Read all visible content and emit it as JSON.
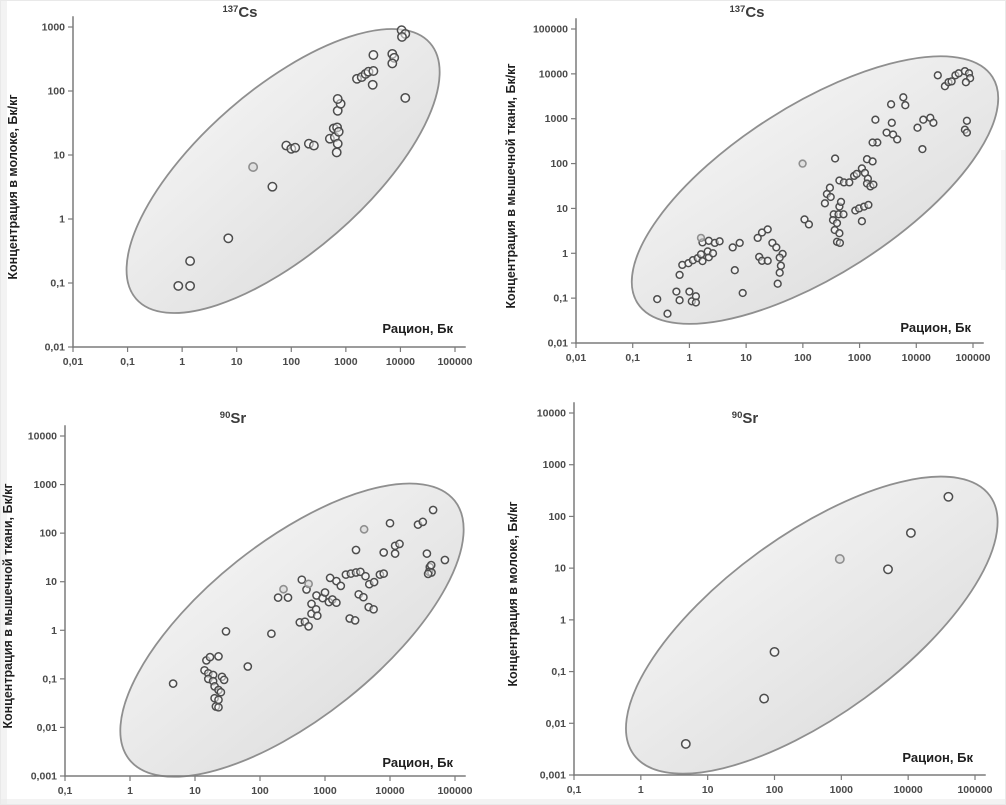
{
  "page": {
    "background": "#ffffff"
  },
  "colors": {
    "ellipse_fill_top": "#f0f0f0",
    "ellipse_fill_bottom": "#e2e2e2",
    "ellipse_stroke": "#8f8f8f",
    "point_stroke": "#4d4d4d",
    "axis": "#7b7b7b",
    "text": "#1f1f1f"
  },
  "chart_data": [
    {
      "type": "scatter",
      "id": "cs137-milk",
      "title": "137Cs",
      "title_sup": "137",
      "title_main": "Cs",
      "xlabel": "Рацион, Бк",
      "ylabel": "Концентрация в молоке, Бк/кг",
      "x_scale": "log",
      "y_scale": "log",
      "x_log_range": [
        -2,
        5
      ],
      "y_log_range": [
        -2,
        3
      ],
      "x_ticks": [
        "0,01",
        "0,1",
        "1",
        "10",
        "100",
        "1000",
        "10000",
        "100000"
      ],
      "y_ticks": [
        "0,01",
        "0,1",
        "1",
        "10",
        "100",
        "1000"
      ],
      "grid": false,
      "legend": false,
      "ellipse": {
        "cx": 0.55,
        "cy": 0.45,
        "rx": 0.51,
        "ry": 0.256,
        "angle": -41
      },
      "points": [
        [
          0.85,
          0.09
        ],
        [
          1.4,
          0.09
        ],
        [
          1.4,
          0.22
        ],
        [
          7,
          0.5
        ],
        [
          45,
          3.2
        ],
        [
          81,
          14
        ],
        [
          100,
          12.5
        ],
        [
          118,
          13
        ],
        [
          210,
          15
        ],
        [
          260,
          14
        ],
        [
          510,
          18
        ],
        [
          630,
          19
        ],
        [
          680,
          11
        ],
        [
          600,
          26
        ],
        [
          690,
          27
        ],
        [
          710,
          15
        ],
        [
          740,
          23
        ],
        [
          710,
          49
        ],
        [
          800,
          63
        ],
        [
          710,
          75
        ],
        [
          1600,
          155
        ],
        [
          1950,
          165
        ],
        [
          2300,
          185
        ],
        [
          2600,
          200
        ],
        [
          3200,
          205
        ],
        [
          3100,
          125
        ],
        [
          3200,
          365
        ],
        [
          7100,
          380
        ],
        [
          7700,
          330
        ],
        [
          7100,
          270
        ],
        [
          10500,
          890
        ],
        [
          12300,
          780
        ],
        [
          10700,
          700
        ],
        [
          12300,
          78
        ]
      ],
      "gray_points": [
        [
          20,
          6.5
        ]
      ]
    },
    {
      "type": "scatter",
      "id": "cs137-muscle",
      "title": "137Cs",
      "title_sup": "137",
      "title_main": "Cs",
      "xlabel": "Рацион, Бк",
      "ylabel": "Концентрация в мышечной ткани, Бк/кг",
      "x_scale": "log",
      "y_scale": "log",
      "x_log_range": [
        -2,
        5
      ],
      "y_log_range": [
        -2,
        5
      ],
      "x_ticks": [
        "0,01",
        "0,1",
        "1",
        "10",
        "100",
        "1000",
        "10000",
        "100000"
      ],
      "y_ticks": [
        "0,01",
        "0,1",
        "1",
        "10",
        "100",
        "1000",
        "10000",
        "100000"
      ],
      "grid": false,
      "legend": false,
      "ellipse": {
        "cx": 0.602,
        "cy": 0.513,
        "rx": 0.53,
        "ry": 0.27,
        "angle": -32.5
      },
      "points": [
        [
          0.27,
          0.095
        ],
        [
          0.41,
          0.045
        ],
        [
          0.59,
          0.14
        ],
        [
          0.67,
          0.09
        ],
        [
          1.1,
          0.085
        ],
        [
          1.3,
          0.11
        ],
        [
          0.75,
          0.55
        ],
        [
          0.67,
          0.33
        ],
        [
          0.96,
          0.6
        ],
        [
          1.15,
          0.7
        ],
        [
          1.4,
          0.78
        ],
        [
          1.7,
          0.67
        ],
        [
          2.2,
          0.82
        ],
        [
          1.6,
          0.95
        ],
        [
          2.1,
          1.1
        ],
        [
          2.6,
          1.0
        ],
        [
          1.7,
          1.75
        ],
        [
          2.2,
          1.9
        ],
        [
          2.8,
          1.7
        ],
        [
          3.4,
          1.85
        ],
        [
          5.8,
          1.35
        ],
        [
          7.7,
          1.7
        ],
        [
          6.3,
          0.42
        ],
        [
          8.7,
          0.13
        ],
        [
          1.0,
          0.14
        ],
        [
          1.3,
          0.08
        ],
        [
          16,
          2.2
        ],
        [
          19,
          2.9
        ],
        [
          24,
          3.4
        ],
        [
          29,
          1.7
        ],
        [
          34,
          1.35
        ],
        [
          17,
          0.83
        ],
        [
          19,
          0.68
        ],
        [
          24,
          0.68
        ],
        [
          44,
          0.97
        ],
        [
          39,
          0.8
        ],
        [
          41,
          0.53
        ],
        [
          39,
          0.37
        ],
        [
          36,
          0.21
        ],
        [
          107,
          5.7
        ],
        [
          128,
          4.4
        ],
        [
          245,
          13
        ],
        [
          265,
          21
        ],
        [
          300,
          29
        ],
        [
          310,
          18
        ],
        [
          350,
          7.4
        ],
        [
          425,
          7.4
        ],
        [
          520,
          7.4
        ],
        [
          340,
          5.5
        ],
        [
          400,
          4.7
        ],
        [
          365,
          3.3
        ],
        [
          440,
          2.8
        ],
        [
          400,
          1.8
        ],
        [
          450,
          1.7
        ],
        [
          440,
          11
        ],
        [
          470,
          14
        ],
        [
          840,
          9
        ],
        [
          980,
          10
        ],
        [
          1200,
          11
        ],
        [
          1430,
          12
        ],
        [
          1100,
          5.2
        ],
        [
          440,
          42
        ],
        [
          530,
          38
        ],
        [
          660,
          38
        ],
        [
          800,
          53
        ],
        [
          890,
          59
        ],
        [
          1100,
          78
        ],
        [
          1240,
          62
        ],
        [
          1400,
          46
        ],
        [
          1350,
          36
        ],
        [
          1550,
          31
        ],
        [
          1750,
          34
        ],
        [
          370,
          130
        ],
        [
          1350,
          125
        ],
        [
          1700,
          112
        ],
        [
          1900,
          950
        ],
        [
          3700,
          810
        ],
        [
          3000,
          490
        ],
        [
          3900,
          445
        ],
        [
          4600,
          345
        ],
        [
          2050,
          295
        ],
        [
          1700,
          295
        ],
        [
          3600,
          2100
        ],
        [
          5900,
          3000
        ],
        [
          6400,
          2000
        ],
        [
          10500,
          630
        ],
        [
          13300,
          950
        ],
        [
          17700,
          1050
        ],
        [
          20000,
          810
        ],
        [
          12800,
          210
        ],
        [
          24000,
          9300
        ],
        [
          32000,
          5300
        ],
        [
          37000,
          6500
        ],
        [
          42000,
          6800
        ],
        [
          49000,
          9300
        ],
        [
          56000,
          10300
        ],
        [
          72000,
          11500
        ],
        [
          85000,
          10300
        ],
        [
          89000,
          8000
        ],
        [
          75000,
          6500
        ],
        [
          78000,
          900
        ],
        [
          72000,
          570
        ],
        [
          78000,
          490
        ]
      ],
      "gray_points": [
        [
          99,
          100
        ],
        [
          1.6,
          2.2
        ]
      ]
    },
    {
      "type": "scatter",
      "id": "sr90-muscle",
      "title": "90Sr",
      "title_sup": "90",
      "title_main": "Sr",
      "xlabel": "Рацион, Бк",
      "ylabel": "Концентрация в мышечной ткани, Бк/кг",
      "x_scale": "log",
      "y_scale": "log",
      "x_log_range": [
        -1,
        5
      ],
      "y_log_range": [
        -3,
        4
      ],
      "x_ticks": [
        "0,1",
        "1",
        "10",
        "100",
        "1000",
        "10000",
        "100000"
      ],
      "y_ticks": [
        "0,001",
        "0,01",
        "0,1",
        "1",
        "10",
        "100",
        "1000",
        "10000"
      ],
      "grid": false,
      "legend": false,
      "ellipse": {
        "cx": 0.582,
        "cy": 0.571,
        "rx": 0.533,
        "ry": 0.259,
        "angle": -38.5
      },
      "points": [
        [
          4.6,
          0.08
        ],
        [
          15,
          0.24
        ],
        [
          17,
          0.28
        ],
        [
          23,
          0.29
        ],
        [
          14,
          0.15
        ],
        [
          16,
          0.13
        ],
        [
          19,
          0.12
        ],
        [
          16,
          0.1
        ],
        [
          19,
          0.09
        ],
        [
          26,
          0.11
        ],
        [
          28,
          0.095
        ],
        [
          20,
          0.07
        ],
        [
          23,
          0.059
        ],
        [
          25,
          0.053
        ],
        [
          20,
          0.04
        ],
        [
          23,
          0.037
        ],
        [
          21,
          0.027
        ],
        [
          23,
          0.026
        ],
        [
          30,
          0.95
        ],
        [
          65,
          0.18
        ],
        [
          150,
          0.85
        ],
        [
          190,
          4.7
        ],
        [
          270,
          4.7
        ],
        [
          410,
          1.45
        ],
        [
          490,
          1.5
        ],
        [
          560,
          1.2
        ],
        [
          620,
          2.2
        ],
        [
          730,
          2.7
        ],
        [
          760,
          2.0
        ],
        [
          520,
          6.9
        ],
        [
          620,
          3.5
        ],
        [
          740,
          5.2
        ],
        [
          920,
          4.6
        ],
        [
          1150,
          3.8
        ],
        [
          1000,
          6
        ],
        [
          1300,
          4.3
        ],
        [
          1500,
          3.7
        ],
        [
          2400,
          1.75
        ],
        [
          2900,
          1.6
        ],
        [
          3300,
          5.5
        ],
        [
          3900,
          4.8
        ],
        [
          4700,
          3.0
        ],
        [
          5600,
          2.7
        ],
        [
          1200,
          12
        ],
        [
          1500,
          10.3
        ],
        [
          1750,
          8.2
        ],
        [
          2100,
          14
        ],
        [
          2500,
          14.7
        ],
        [
          3000,
          15.5
        ],
        [
          3500,
          16
        ],
        [
          4200,
          13
        ],
        [
          4800,
          8.9
        ],
        [
          5700,
          9.8
        ],
        [
          7000,
          14
        ],
        [
          8000,
          14.7
        ],
        [
          440,
          11
        ],
        [
          3000,
          45
        ],
        [
          8000,
          40
        ],
        [
          12000,
          55
        ],
        [
          14000,
          60
        ],
        [
          12000,
          38
        ],
        [
          10000,
          160
        ],
        [
          27000,
          150
        ],
        [
          32000,
          170
        ],
        [
          37000,
          38
        ],
        [
          70000,
          28
        ],
        [
          41000,
          20
        ],
        [
          43000,
          22
        ],
        [
          40000,
          16
        ],
        [
          43500,
          15.5
        ],
        [
          38500,
          14.5
        ],
        [
          46000,
          300
        ]
      ],
      "gray_points": [
        [
          4000,
          120
        ],
        [
          230,
          7
        ],
        [
          560,
          9
        ]
      ]
    },
    {
      "type": "scatter",
      "id": "sr90-milk",
      "title": "90Sr",
      "title_sup": "90",
      "title_main": "Sr",
      "xlabel": "Рацион, Бк",
      "ylabel": "Концентрация в молоке, Бк/кг",
      "x_scale": "log",
      "y_scale": "log",
      "x_log_range": [
        -1,
        5
      ],
      "y_log_range": [
        -3,
        4
      ],
      "x_ticks": [
        "0,1",
        "1",
        "10",
        "100",
        "1000",
        "10000",
        "100000"
      ],
      "y_ticks": [
        "0,001",
        "0,01",
        "0,1",
        "1",
        "10",
        "100",
        "1000",
        "10000"
      ],
      "grid": false,
      "legend": false,
      "ellipse": {
        "cx": 0.593,
        "cy": 0.586,
        "rx": 0.549,
        "ry": 0.249,
        "angle": -36
      },
      "points": [
        [
          4.7,
          0.004
        ],
        [
          70,
          0.03
        ],
        [
          100,
          0.24
        ],
        [
          5000,
          9.5
        ],
        [
          11000,
          48
        ],
        [
          40000,
          240
        ]
      ],
      "gray_points": [
        [
          950,
          15
        ]
      ]
    }
  ]
}
